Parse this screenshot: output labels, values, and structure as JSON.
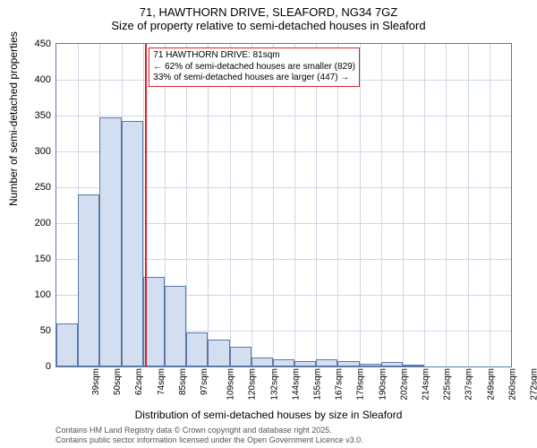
{
  "title": {
    "main": "71, HAWTHORN DRIVE, SLEAFORD, NG34 7GZ",
    "sub": "Size of property relative to semi-detached houses in Sleaford"
  },
  "chart": {
    "type": "histogram",
    "ylabel": "Number of semi-detached properties",
    "xlabel": "Distribution of semi-detached houses by size in Sleaford",
    "ylim": [
      0,
      450
    ],
    "ytick_step": 50,
    "yticks": [
      0,
      50,
      100,
      150,
      200,
      250,
      300,
      350,
      400,
      450
    ],
    "categories": [
      "39sqm",
      "50sqm",
      "62sqm",
      "74sqm",
      "85sqm",
      "97sqm",
      "109sqm",
      "120sqm",
      "132sqm",
      "144sqm",
      "155sqm",
      "167sqm",
      "179sqm",
      "190sqm",
      "202sqm",
      "214sqm",
      "225sqm",
      "237sqm",
      "249sqm",
      "260sqm",
      "272sqm"
    ],
    "values": [
      60,
      240,
      348,
      342,
      125,
      112,
      48,
      38,
      28,
      12,
      10,
      8,
      10,
      8,
      4,
      6,
      3,
      0,
      0,
      0,
      0
    ],
    "bar_fill": "#d3def0",
    "bar_border": "#5b79a5",
    "grid_color": "#cdd8e8",
    "plot_border": "#5b79a5",
    "background_color": "#ffffff",
    "title_fontsize": 13,
    "label_fontsize": 12,
    "tick_fontsize": 11,
    "xtick_fontsize": 10,
    "bar_width": 1.0
  },
  "marker": {
    "position_sqm": 81,
    "color": "#d82424",
    "callout_lines": [
      "71 HAWTHORN DRIVE: 81sqm",
      "← 62% of semi-detached houses are smaller (829)",
      "33% of semi-detached houses are larger (447) →"
    ],
    "callout_border": "#d82424",
    "callout_bg": "rgba(255,255,255,0.9)",
    "callout_fontsize": 10
  },
  "attribution": {
    "line1": "Contains HM Land Registry data © Crown copyright and database right 2025.",
    "line2": "Contains public sector information licensed under the Open Government Licence v3.0."
  }
}
